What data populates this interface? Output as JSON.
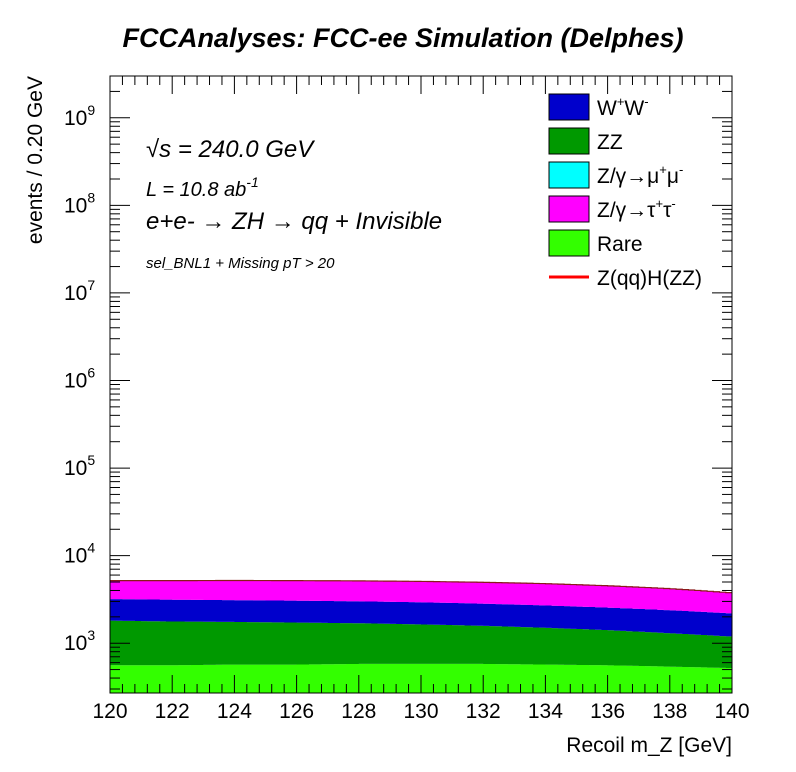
{
  "title": "FCCAnalyses: FCC-ee Simulation (Delphes)",
  "annotations": {
    "sqrt_s": "√s = 240.0 GeV",
    "lumi_main": "L = 10.8 ab",
    "lumi_sup": "-1",
    "process_main": "e+e- → ZH → qq + Invisible",
    "selection": "sel_BNL1 + Missing pT > 20"
  },
  "chart_data": {
    "type": "area",
    "stacked": true,
    "log_y": true,
    "title": "FCCAnalyses: FCC-ee Simulation (Delphes)",
    "xlabel": "Recoil m_Z [GeV]",
    "ylabel": "events / 0.20 GeV",
    "xlim": [
      120,
      140
    ],
    "ylim": [
      270,
      3000000000
    ],
    "x_ticks": [
      "120",
      "122",
      "124",
      "126",
      "128",
      "130",
      "132",
      "134",
      "136",
      "138",
      "140"
    ],
    "y_ticks": [
      {
        "value": 1000,
        "exp": "3"
      },
      {
        "value": 10000,
        "exp": "4"
      },
      {
        "value": 100000,
        "exp": "5"
      },
      {
        "value": 1000000,
        "exp": "6"
      },
      {
        "value": 10000000,
        "exp": "7"
      },
      {
        "value": 100000000,
        "exp": "8"
      },
      {
        "value": 1000000000,
        "exp": "9"
      }
    ],
    "y_tick_base": "10",
    "x": [
      120,
      122,
      124,
      126,
      128,
      130,
      132,
      134,
      136,
      138,
      140
    ],
    "stack_order_bottom_to_top": [
      "Rare",
      "ZZ",
      "W+W-",
      "Z/γ→τ+τ-",
      "Z/γ→μ+μ-"
    ],
    "series": [
      {
        "name": "Rare",
        "color": "#33ff00",
        "values": [
          560,
          560,
          570,
          570,
          580,
          580,
          580,
          570,
          560,
          540,
          520
        ]
      },
      {
        "name": "ZZ",
        "color": "#009900",
        "values": [
          1250,
          1210,
          1180,
          1150,
          1110,
          1060,
          1000,
          930,
          850,
          760,
          670
        ]
      },
      {
        "name": "W+W-",
        "color": "#0000cc",
        "values": [
          1380,
          1370,
          1350,
          1340,
          1320,
          1290,
          1250,
          1200,
          1140,
          1080,
          1000
        ]
      },
      {
        "name": "Z/γ→τ+τ-",
        "color": "#ff00ff",
        "values": [
          1990,
          2040,
          2100,
          2120,
          2140,
          2150,
          2130,
          2090,
          1980,
          1820,
          1570
        ]
      },
      {
        "name": "Z/γ→μ+μ-",
        "color": "#00ffff",
        "values": [
          1,
          1,
          1,
          1,
          1,
          1,
          1,
          1,
          1,
          1,
          1
        ]
      },
      {
        "name": "Z(qq)H(ZZ)",
        "color": "#ff0000",
        "style": "line",
        "values": [
          1,
          1,
          1,
          1,
          1,
          1,
          1,
          1,
          1,
          1,
          1
        ]
      }
    ],
    "legend": {
      "placement": "top-right",
      "entries": [
        {
          "label": "W+W-",
          "color": "#0000cc",
          "type": "box"
        },
        {
          "label": "ZZ",
          "color": "#009900",
          "type": "box"
        },
        {
          "label": "Z/γ→μ+μ-",
          "color": "#00ffff",
          "type": "box"
        },
        {
          "label": "Z/γ→τ+τ-",
          "color": "#ff00ff",
          "type": "box"
        },
        {
          "label": "Rare",
          "color": "#33ff00",
          "type": "box"
        },
        {
          "label": "Z(qq)H(ZZ)",
          "color": "#ff0000",
          "type": "line"
        }
      ]
    },
    "grid": false
  }
}
